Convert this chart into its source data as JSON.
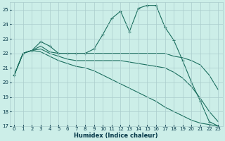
{
  "xlabel": "Humidex (Indice chaleur)",
  "bg_color": "#cceee8",
  "grid_color": "#aacccc",
  "line_color": "#1a6e5e",
  "xlim": [
    -0.5,
    23.5
  ],
  "ylim": [
    17,
    25.5
  ],
  "yticks": [
    17,
    18,
    19,
    20,
    21,
    22,
    23,
    24,
    25
  ],
  "xticks": [
    0,
    1,
    2,
    3,
    4,
    5,
    6,
    7,
    8,
    9,
    10,
    11,
    12,
    13,
    14,
    15,
    16,
    17,
    18,
    19,
    20,
    21,
    22,
    23
  ],
  "line1_x": [
    0,
    1,
    2,
    3,
    4,
    5,
    6,
    7,
    8,
    9,
    10,
    11,
    12,
    13,
    14,
    15,
    16,
    17,
    18,
    19,
    20,
    21,
    22,
    23
  ],
  "line1_y": [
    20.5,
    22.0,
    22.2,
    22.8,
    22.5,
    22.0,
    22.0,
    22.0,
    22.0,
    22.3,
    23.3,
    24.4,
    24.9,
    23.5,
    25.1,
    25.3,
    25.3,
    23.8,
    22.9,
    21.5,
    20.0,
    18.7,
    17.3,
    17.0
  ],
  "line2_x": [
    0,
    1,
    2,
    3,
    4,
    5,
    6,
    7,
    8,
    9,
    10,
    11,
    12,
    13,
    14,
    15,
    16,
    17,
    18,
    19,
    20,
    21,
    22,
    23
  ],
  "line2_y": [
    20.5,
    22.0,
    22.2,
    22.5,
    22.1,
    22.0,
    22.0,
    22.0,
    22.0,
    22.0,
    22.0,
    22.0,
    22.0,
    22.0,
    22.0,
    22.0,
    22.0,
    22.0,
    21.8,
    21.7,
    21.5,
    21.2,
    20.5,
    19.5
  ],
  "line3_x": [
    0,
    1,
    2,
    3,
    4,
    5,
    6,
    7,
    8,
    9,
    10,
    11,
    12,
    13,
    14,
    15,
    16,
    17,
    18,
    19,
    20,
    21,
    22,
    23
  ],
  "line3_y": [
    20.5,
    22.0,
    22.2,
    22.3,
    22.0,
    21.8,
    21.6,
    21.5,
    21.5,
    21.5,
    21.5,
    21.5,
    21.5,
    21.4,
    21.3,
    21.2,
    21.1,
    21.0,
    20.7,
    20.3,
    19.7,
    18.9,
    18.0,
    17.3
  ],
  "line4_x": [
    0,
    1,
    2,
    3,
    4,
    5,
    6,
    7,
    8,
    9,
    10,
    11,
    12,
    13,
    14,
    15,
    16,
    17,
    18,
    19,
    20,
    21,
    22,
    23
  ],
  "line4_y": [
    20.5,
    22.0,
    22.2,
    22.1,
    21.8,
    21.5,
    21.3,
    21.1,
    21.0,
    20.8,
    20.5,
    20.2,
    19.9,
    19.6,
    19.3,
    19.0,
    18.7,
    18.3,
    18.0,
    17.7,
    17.4,
    17.2,
    17.1,
    17.0
  ]
}
